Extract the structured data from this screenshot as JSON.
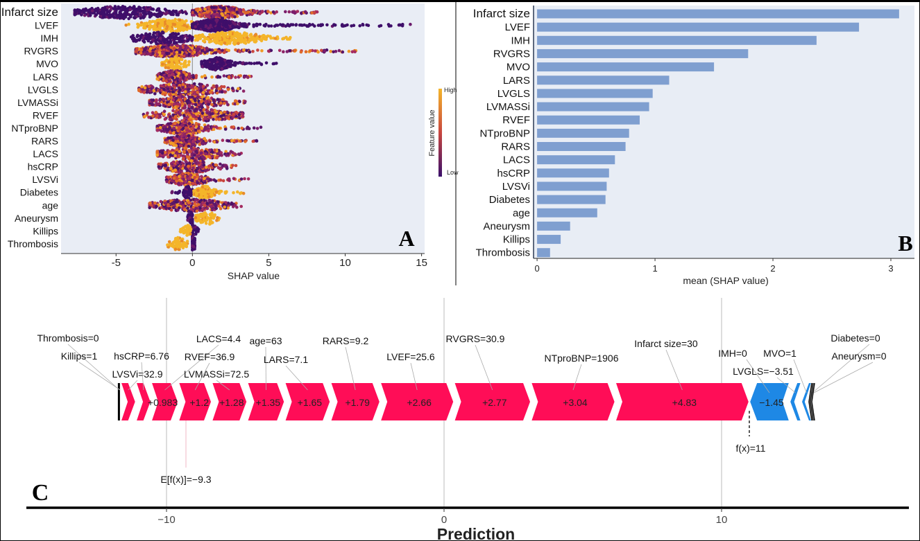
{
  "chart_data": [
    {
      "panel_label": "A",
      "type": "scatter",
      "subtype": "shap-beeswarm",
      "xlabel": "SHAP value",
      "xlim": [
        -8.6,
        15.2
      ],
      "xticks": [
        -5,
        0,
        5,
        10,
        15
      ],
      "xtick_labels": [
        "-5",
        "0",
        "5",
        "10",
        "15"
      ],
      "zero_line": true,
      "background": "#e9edf5",
      "colorbar": {
        "title": "Feature value",
        "high_label": "High",
        "low_label": "Low",
        "high_color": "#f4b52a",
        "mid_color": "#c8463f",
        "low_color": "#3a0f6b"
      },
      "features": [
        {
          "name": "Infarct size",
          "clusters": [
            {
              "level": "low",
              "center": -4.4,
              "min": -7.7,
              "max": 0
            },
            {
              "level": "mixed",
              "center": 1.8,
              "min": 0,
              "max": 8.7
            }
          ]
        },
        {
          "name": "LVEF",
          "clusters": [
            {
              "level": "high",
              "center": -1.5,
              "min": -4.8,
              "max": 0.4
            },
            {
              "level": "low",
              "center": 1.5,
              "min": 0,
              "max": 14.3
            }
          ]
        },
        {
          "name": "IMH",
          "clusters": [
            {
              "level": "low",
              "center": -2.0,
              "min": -4.1,
              "max": 0
            },
            {
              "level": "high",
              "center": 2.5,
              "min": 0.2,
              "max": 6.6
            }
          ]
        },
        {
          "name": "RVGRS",
          "clusters": [
            {
              "level": "mixed",
              "center": -1.2,
              "min": -3.7,
              "max": 10.9
            }
          ]
        },
        {
          "name": "MVO",
          "clusters": [
            {
              "level": "high",
              "center": -1.1,
              "min": -2.0,
              "max": -0.1
            },
            {
              "level": "low",
              "center": 1.6,
              "min": 0.6,
              "max": 5.5
            }
          ]
        },
        {
          "name": "LARS",
          "clusters": [
            {
              "level": "mixed",
              "center": -1.2,
              "min": -2.3,
              "max": 4.0
            }
          ]
        },
        {
          "name": "LVGLS",
          "clusters": [
            {
              "level": "mixed",
              "center": -0.6,
              "min": -3.5,
              "max": 3.4
            }
          ]
        },
        {
          "name": "LVMASSi",
          "clusters": [
            {
              "level": "mixed",
              "center": -0.2,
              "min": -2.8,
              "max": 3.8
            }
          ]
        },
        {
          "name": "RVEF",
          "clusters": [
            {
              "level": "mixed",
              "center": 0.2,
              "min": -3.2,
              "max": 3.3
            }
          ]
        },
        {
          "name": "NTproBNP",
          "clusters": [
            {
              "level": "mixed",
              "center": -0.6,
              "min": -2.3,
              "max": 4.5
            }
          ]
        },
        {
          "name": "RARS",
          "clusters": [
            {
              "level": "mixed",
              "center": -0.5,
              "min": -1.8,
              "max": 4.4
            }
          ]
        },
        {
          "name": "LACS",
          "clusters": [
            {
              "level": "mixed",
              "center": 0.0,
              "min": -2.3,
              "max": 3.3
            }
          ]
        },
        {
          "name": "hsCRP",
          "clusters": [
            {
              "level": "mixed",
              "center": -0.2,
              "min": -2.2,
              "max": 3.0
            }
          ]
        },
        {
          "name": "LVSVi",
          "clusters": [
            {
              "level": "mixed",
              "center": -0.3,
              "min": -1.7,
              "max": 3.9
            }
          ]
        },
        {
          "name": "Diabetes",
          "clusters": [
            {
              "level": "low",
              "center": -0.3,
              "min": -1.5,
              "max": 0
            },
            {
              "level": "high",
              "center": 0.8,
              "min": 0.1,
              "max": 3.4
            }
          ]
        },
        {
          "name": "age",
          "clusters": [
            {
              "level": "mixed",
              "center": -0.1,
              "min": -2.8,
              "max": 3.3
            }
          ]
        },
        {
          "name": "Aneurysm",
          "clusters": [
            {
              "level": "low",
              "center": -0.1,
              "min": -0.3,
              "max": 0
            },
            {
              "level": "high",
              "center": 1.0,
              "min": 0.2,
              "max": 1.9
            }
          ]
        },
        {
          "name": "Killips",
          "clusters": [
            {
              "level": "low",
              "center": 0.05,
              "min": 0,
              "max": 0.4
            },
            {
              "level": "high",
              "center": -0.4,
              "min": -0.8,
              "max": -0.1
            }
          ]
        },
        {
          "name": "Thrombosis",
          "clusters": [
            {
              "level": "low",
              "center": 0.05,
              "min": 0,
              "max": 0.15
            },
            {
              "level": "high",
              "center": -1.0,
              "min": -1.8,
              "max": -0.3
            }
          ]
        }
      ]
    },
    {
      "panel_label": "B",
      "type": "bar",
      "orientation": "horizontal",
      "xlabel": "mean (SHAP value)",
      "xlim": [
        -0.03,
        3.2
      ],
      "xticks": [
        0,
        1,
        2,
        3
      ],
      "xtick_labels": [
        "0",
        "1",
        "2",
        "3"
      ],
      "bar_color": "#7f9fd0",
      "background": "#e8edf5",
      "categories": [
        "Infarct size",
        "LVEF",
        "IMH",
        "RVGRS",
        "MVO",
        "LARS",
        "LVGLS",
        "LVMASSi",
        "RVEF",
        "NTproBNP",
        "RARS",
        "LACS",
        "hsCRP",
        "LVSVi",
        "Diabetes",
        "age",
        "Aneurysm",
        "Killips",
        "Thrombosis"
      ],
      "values": [
        3.07,
        2.73,
        2.37,
        1.79,
        1.5,
        1.12,
        0.98,
        0.95,
        0.87,
        0.78,
        0.75,
        0.66,
        0.61,
        0.59,
        0.58,
        0.51,
        0.28,
        0.2,
        0.11
      ]
    },
    {
      "panel_label": "C",
      "type": "force",
      "xlabel": "Prediction",
      "xlim": [
        -15.05,
        16.75
      ],
      "xticks": [
        -10,
        0,
        10
      ],
      "xtick_labels": [
        "−10",
        "0",
        "10"
      ],
      "base_value": -9.3,
      "base_label": "E[f(x)]=−9.3",
      "output_value": 11,
      "output_label": "f(x)=11",
      "positive_color": "#ff0d57",
      "negative_color": "#1e88e5",
      "positive": [
        {
          "feature_label": "Thrombosis=0",
          "value": 0.02
        },
        {
          "feature_label": "Killips=1",
          "value": 0.03
        },
        {
          "feature_label": "LVSVi=32.9",
          "value": 0.55
        },
        {
          "feature_label": "hsCRP=6.76",
          "value": 0.55
        },
        {
          "feature_label": "LACS=4.4",
          "value": 0.983,
          "value_label": "+0.983"
        },
        {
          "feature_label": "RVEF=36.9",
          "value": 1.2,
          "value_label": "+1.2"
        },
        {
          "feature_label": "LVMASSi=72.5",
          "value": 1.28,
          "value_label": "+1.28"
        },
        {
          "feature_label": "age=63",
          "value": 1.35,
          "value_label": "+1.35"
        },
        {
          "feature_label": "LARS=7.1",
          "value": 1.65,
          "value_label": "+1.65"
        },
        {
          "feature_label": "RARS=9.2",
          "value": 1.79,
          "value_label": "+1.79"
        },
        {
          "feature_label": "LVEF=25.6",
          "value": 2.66,
          "value_label": "+2.66"
        },
        {
          "feature_label": "RVGRS=30.9",
          "value": 2.77,
          "value_label": "+2.77"
        },
        {
          "feature_label": "NTproBNP=1906",
          "value": 3.04,
          "value_label": "+3.04"
        },
        {
          "feature_label": "Infarct size=30",
          "value": 4.83,
          "value_label": "+4.83"
        }
      ],
      "negative": [
        {
          "feature_label": "IMH=0",
          "value": -1.45,
          "value_label": "−1.45"
        },
        {
          "feature_label": "LVGLS=−3.51",
          "value": -0.42
        },
        {
          "feature_label": "MVO=1",
          "value": -0.38
        },
        {
          "feature_label": "Diabetes=0",
          "value": -0.05
        },
        {
          "feature_label": "Aneurysm=0",
          "value": -0.05
        }
      ]
    }
  ]
}
